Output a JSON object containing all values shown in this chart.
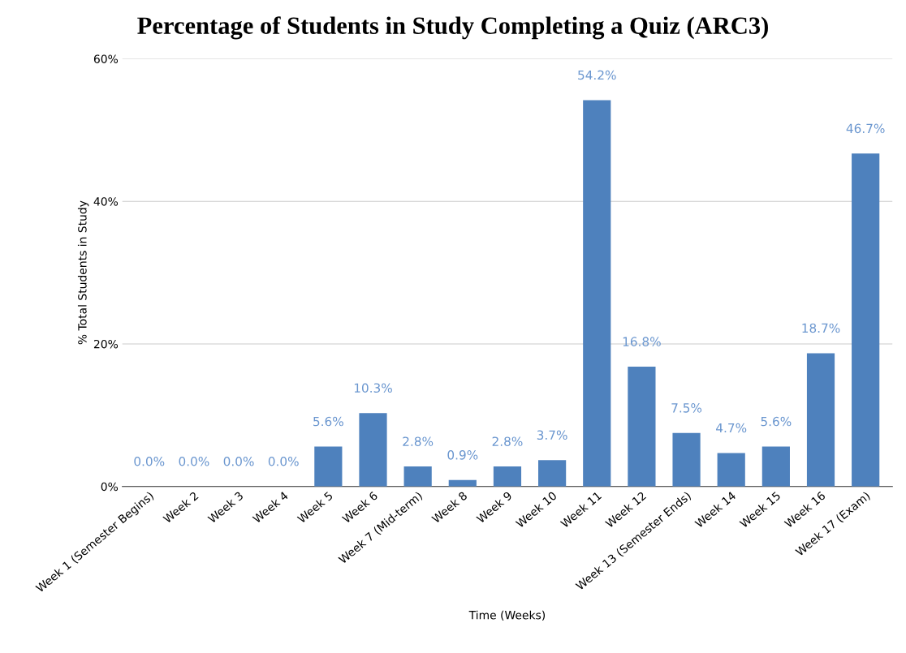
{
  "chart_data": {
    "type": "bar",
    "title": "Percentage of Students in Study Completing a Quiz (ARC3)",
    "xlabel": "Time (Weeks)",
    "ylabel": "% Total Students in Study",
    "categories": [
      "Week 1 (Semester Begins)",
      "Week 2",
      "Week 3",
      "Week 4",
      "Week 5",
      "Week 6",
      "Week 7 (Mid-term)",
      "Week 8",
      "Week 9",
      "Week 10",
      "Week 11",
      "Week 12",
      "Week 13 (Semester Ends)",
      "Week 14",
      "Week 15",
      "Week 16",
      "Week 17 (Exam)"
    ],
    "values": [
      0.0,
      0.0,
      0.0,
      0.0,
      5.6,
      10.3,
      2.8,
      0.9,
      2.8,
      3.7,
      54.2,
      16.8,
      7.5,
      4.7,
      5.6,
      18.7,
      46.7
    ],
    "value_labels": [
      "0.0%",
      "0.0%",
      "0.0%",
      "0.0%",
      "5.6%",
      "10.3%",
      "2.8%",
      "0.9%",
      "2.8%",
      "3.7%",
      "54.2%",
      "16.8%",
      "7.5%",
      "4.7%",
      "5.6%",
      "18.7%",
      "46.7%"
    ],
    "color": "#4e81bd",
    "ylim": [
      0,
      60
    ],
    "yticks": [
      {
        "value": 0,
        "label": "0%"
      },
      {
        "value": 20,
        "label": "20%"
      },
      {
        "value": 40,
        "label": "40%"
      },
      {
        "value": 60,
        "label": "60%"
      }
    ],
    "grid": "y",
    "legend": false
  }
}
